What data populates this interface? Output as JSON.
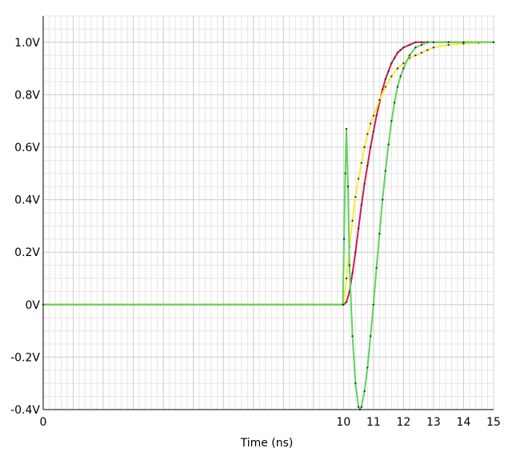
{
  "chart_data": {
    "type": "line",
    "title": "",
    "xlabel": "Time (ns)",
    "ylabel": "",
    "xlim": [
      0,
      15
    ],
    "ylim": [
      -0.4,
      1.1
    ],
    "x_ticks": [
      0,
      1,
      2,
      3,
      4,
      5,
      6,
      7,
      8,
      9,
      10,
      11,
      12,
      13,
      14,
      15
    ],
    "x_tick_labels": [
      "0",
      "",
      "",
      "",
      "",
      "",
      "",
      "",
      "",
      "",
      "10",
      "11",
      "12",
      "13",
      "14",
      "15"
    ],
    "y_ticks": [
      -0.4,
      -0.2,
      0,
      0.2,
      0.4,
      0.6,
      0.8,
      1.0
    ],
    "y_tick_labels": [
      "-0.4V",
      "-0.2V",
      "0V",
      "0.2V",
      "0.4V",
      "0.6V",
      "0.8V",
      "1.0V"
    ],
    "grid": true,
    "legend": "none",
    "colors": {
      "grid_minor": "#e6e6e6",
      "grid_major": "#d0d0d0",
      "axis": "#000000"
    },
    "series": [
      {
        "color": "#d01c50",
        "x": [
          0,
          10,
          10.1,
          10.2,
          10.3,
          10.4,
          10.5,
          10.6,
          10.7,
          10.8,
          10.9,
          11.0,
          11.1,
          11.2,
          11.3,
          11.4,
          11.5,
          11.6,
          11.7,
          11.8,
          11.9,
          12.0,
          12.2,
          12.4,
          12.6,
          12.8,
          13.0,
          13.5,
          14.0,
          15.0
        ],
        "y": [
          0,
          0,
          0.01,
          0.05,
          0.12,
          0.2,
          0.29,
          0.38,
          0.46,
          0.53,
          0.6,
          0.66,
          0.72,
          0.77,
          0.82,
          0.86,
          0.89,
          0.92,
          0.94,
          0.96,
          0.97,
          0.98,
          0.99,
          1.0,
          1.0,
          1.0,
          1.0,
          1.0,
          1.0,
          1.0
        ]
      },
      {
        "color": "#f7ec3a",
        "x": [
          0,
          10,
          10.1,
          10.2,
          10.3,
          10.4,
          10.5,
          10.6,
          10.7,
          10.8,
          10.9,
          11.0,
          11.2,
          11.4,
          11.6,
          11.8,
          12.0,
          12.2,
          12.4,
          12.6,
          12.8,
          13.0,
          13.5,
          14.0,
          14.5,
          15.0
        ],
        "y": [
          0,
          0,
          0.1,
          0.22,
          0.32,
          0.41,
          0.48,
          0.54,
          0.6,
          0.65,
          0.69,
          0.72,
          0.78,
          0.83,
          0.87,
          0.9,
          0.92,
          0.94,
          0.95,
          0.96,
          0.97,
          0.98,
          0.99,
          0.995,
          0.998,
          1.0
        ]
      },
      {
        "color": "#5fd35f",
        "x": [
          0,
          9.98,
          10.02,
          10.06,
          10.1,
          10.15,
          10.2,
          10.3,
          10.4,
          10.5,
          10.55,
          10.6,
          10.7,
          10.8,
          10.9,
          11.0,
          11.1,
          11.2,
          11.3,
          11.4,
          11.5,
          11.6,
          11.7,
          11.8,
          11.9,
          12.0,
          12.2,
          12.4,
          12.6,
          12.8,
          13.0,
          13.5,
          14.0,
          15.0
        ],
        "y": [
          0,
          0,
          0.25,
          0.5,
          0.67,
          0.45,
          0.15,
          -0.12,
          -0.3,
          -0.39,
          -0.4,
          -0.39,
          -0.33,
          -0.24,
          -0.12,
          0.0,
          0.14,
          0.27,
          0.4,
          0.51,
          0.61,
          0.7,
          0.77,
          0.83,
          0.87,
          0.9,
          0.95,
          0.98,
          0.99,
          1.0,
          1.0,
          1.0,
          1.0,
          1.0
        ]
      }
    ]
  }
}
